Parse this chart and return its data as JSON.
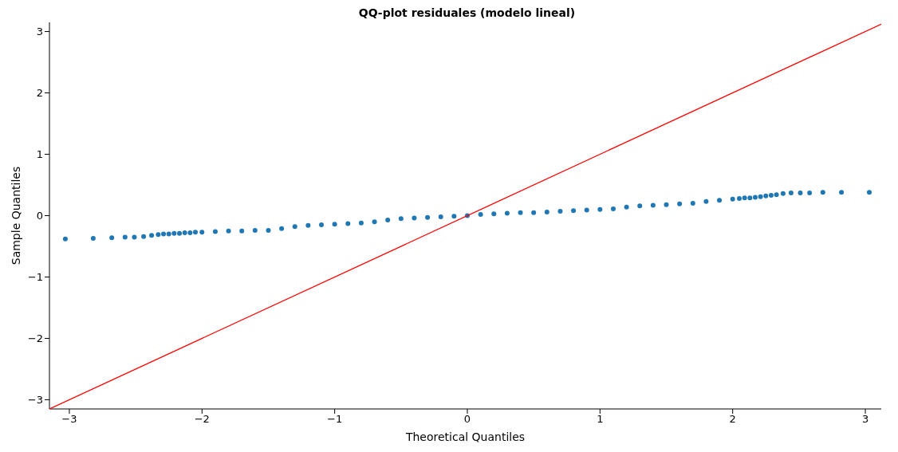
{
  "chart_data": {
    "type": "scatter",
    "title": "QQ-plot residuales (modelo lineal)",
    "xlabel": "Theoretical Quantiles",
    "ylabel": "Sample Quantiles",
    "xlim": [
      -3.15,
      3.12
    ],
    "ylim": [
      -3.15,
      3.15
    ],
    "xticks": [
      -3,
      -2,
      -1,
      0,
      1,
      2,
      3
    ],
    "yticks": [
      -3,
      -2,
      -1,
      0,
      1,
      2,
      3
    ],
    "grid": false,
    "legend": false,
    "series": [
      {
        "marker": "circle",
        "color": "#1f77b4",
        "x": [
          -3.03,
          -2.82,
          -2.68,
          -2.58,
          -2.51,
          -2.44,
          -2.38,
          -2.33,
          -2.29,
          -2.25,
          -2.21,
          -2.17,
          -2.13,
          -2.09,
          -2.05,
          -2.0,
          -1.9,
          -1.8,
          -1.7,
          -1.6,
          -1.5,
          -1.4,
          -1.3,
          -1.2,
          -1.1,
          -1.0,
          -0.9,
          -0.8,
          -0.7,
          -0.6,
          -0.5,
          -0.4,
          -0.3,
          -0.2,
          -0.1,
          0.0,
          0.1,
          0.2,
          0.3,
          0.4,
          0.5,
          0.6,
          0.7,
          0.8,
          0.9,
          1.0,
          1.1,
          1.2,
          1.3,
          1.4,
          1.5,
          1.6,
          1.7,
          1.8,
          1.9,
          2.0,
          2.05,
          2.09,
          2.13,
          2.17,
          2.21,
          2.25,
          2.29,
          2.33,
          2.38,
          2.44,
          2.51,
          2.58,
          2.68,
          2.82,
          3.03
        ],
        "values": [
          -0.38,
          -0.37,
          -0.36,
          -0.35,
          -0.35,
          -0.34,
          -0.32,
          -0.31,
          -0.3,
          -0.3,
          -0.29,
          -0.29,
          -0.28,
          -0.28,
          -0.27,
          -0.27,
          -0.26,
          -0.25,
          -0.25,
          -0.24,
          -0.24,
          -0.21,
          -0.18,
          -0.16,
          -0.15,
          -0.14,
          -0.13,
          -0.12,
          -0.1,
          -0.07,
          -0.05,
          -0.04,
          -0.03,
          -0.02,
          -0.01,
          0.0,
          0.02,
          0.03,
          0.04,
          0.05,
          0.05,
          0.06,
          0.07,
          0.08,
          0.09,
          0.1,
          0.11,
          0.14,
          0.16,
          0.17,
          0.18,
          0.19,
          0.2,
          0.23,
          0.25,
          0.27,
          0.28,
          0.29,
          0.29,
          0.3,
          0.31,
          0.32,
          0.33,
          0.34,
          0.36,
          0.37,
          0.37,
          0.37,
          0.38,
          0.38,
          0.38
        ]
      },
      {
        "type": "line",
        "marker": "none",
        "color": "#ff0000",
        "x": [
          -3.15,
          3.12
        ],
        "values": [
          -3.15,
          3.12
        ]
      }
    ]
  }
}
